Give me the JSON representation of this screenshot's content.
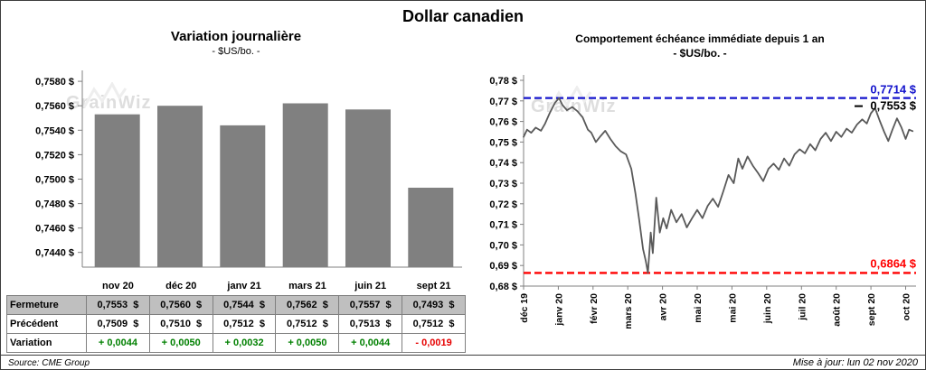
{
  "page_title": "Dollar canadien",
  "watermark": "GrainWiz",
  "footer": {
    "source": "Source: CME Group",
    "updated": "Mise à jour: lun 02 nov 2020"
  },
  "table": {
    "rows": [
      {
        "label": "Fermeture",
        "shaded": true,
        "colorize": false,
        "values": [
          "0,7553  $",
          "0,7560  $",
          "0,7544  $",
          "0,7562  $",
          "0,7557  $",
          "0,7493  $"
        ]
      },
      {
        "label": "Précédent",
        "shaded": false,
        "colorize": false,
        "values": [
          "0,7509  $",
          "0,7510  $",
          "0,7512  $",
          "0,7512  $",
          "0,7513  $",
          "0,7512  $"
        ]
      },
      {
        "label": "Variation",
        "shaded": false,
        "colorize": true,
        "values": [
          "+ 0,0044",
          "+ 0,0050",
          "+ 0,0032",
          "+ 0,0050",
          "+ 0,0044",
          "- 0,0019"
        ]
      }
    ],
    "positive_color": "#008000",
    "negative_color": "#e60000"
  },
  "chart_data": [
    {
      "type": "bar",
      "title": "Variation journalière",
      "subtitle": "- $US/bo. -",
      "categories": [
        "nov 20",
        "déc 20",
        "janv 21",
        "mars 21",
        "juin 21",
        "sept 21"
      ],
      "values": [
        0.7553,
        0.756,
        0.7544,
        0.7562,
        0.7557,
        0.7493
      ],
      "ylim": [
        0.7428,
        0.7586
      ],
      "yticks": [
        0.744,
        0.746,
        0.748,
        0.75,
        0.752,
        0.754,
        0.756,
        0.758
      ],
      "ytick_decimals": 4,
      "bar_color": "#808080",
      "grid": false,
      "legend": "none"
    },
    {
      "type": "line",
      "title": "Comportement échéance immédiate depuis 1 an",
      "subtitle": "- $US/bo. -",
      "x_labels": [
        "déc 19",
        "janv 20",
        "févr 20",
        "mars 20",
        "avr 20",
        "mai 20",
        "mai 20",
        "juin 20",
        "juil 20",
        "août 20",
        "sept 20",
        "oct 20"
      ],
      "ylim": [
        0.68,
        0.78
      ],
      "yticks": [
        0.68,
        0.69,
        0.7,
        0.71,
        0.72,
        0.73,
        0.74,
        0.75,
        0.76,
        0.77,
        0.78
      ],
      "ytick_decimals": 2,
      "line_color": "#595959",
      "grid": false,
      "legend": "none",
      "annotations": {
        "high": {
          "value": 0.7714,
          "label": "0,7714 $",
          "color": "#1414cc"
        },
        "last": {
          "value": 0.7553,
          "label": "0,7553 $",
          "color": "#000000"
        },
        "low": {
          "value": 0.6864,
          "label": "0,6864 $",
          "color": "#ff0000"
        }
      },
      "points": [
        [
          0,
          0.7525
        ],
        [
          0.1,
          0.756
        ],
        [
          0.22,
          0.7545
        ],
        [
          0.35,
          0.757
        ],
        [
          0.5,
          0.7555
        ],
        [
          0.62,
          0.759
        ],
        [
          0.75,
          0.764
        ],
        [
          0.9,
          0.769
        ],
        [
          1.02,
          0.7714
        ],
        [
          1.12,
          0.768
        ],
        [
          1.25,
          0.7655
        ],
        [
          1.4,
          0.767
        ],
        [
          1.55,
          0.765
        ],
        [
          1.7,
          0.762
        ],
        [
          1.85,
          0.756
        ],
        [
          1.95,
          0.7545
        ],
        [
          2.08,
          0.75
        ],
        [
          2.22,
          0.753
        ],
        [
          2.35,
          0.7555
        ],
        [
          2.5,
          0.7515
        ],
        [
          2.65,
          0.748
        ],
        [
          2.8,
          0.7455
        ],
        [
          2.95,
          0.744
        ],
        [
          3.1,
          0.737
        ],
        [
          3.22,
          0.725
        ],
        [
          3.33,
          0.712
        ],
        [
          3.44,
          0.698
        ],
        [
          3.52,
          0.692
        ],
        [
          3.58,
          0.6864
        ],
        [
          3.66,
          0.706
        ],
        [
          3.72,
          0.696
        ],
        [
          3.82,
          0.723
        ],
        [
          3.92,
          0.706
        ],
        [
          4.02,
          0.713
        ],
        [
          4.12,
          0.708
        ],
        [
          4.25,
          0.717
        ],
        [
          4.4,
          0.711
        ],
        [
          4.55,
          0.715
        ],
        [
          4.7,
          0.7085
        ],
        [
          4.85,
          0.713
        ],
        [
          5,
          0.717
        ],
        [
          5.15,
          0.713
        ],
        [
          5.3,
          0.719
        ],
        [
          5.45,
          0.7225
        ],
        [
          5.6,
          0.7185
        ],
        [
          5.75,
          0.726
        ],
        [
          5.9,
          0.734
        ],
        [
          6.05,
          0.73
        ],
        [
          6.18,
          0.742
        ],
        [
          6.3,
          0.737
        ],
        [
          6.45,
          0.743
        ],
        [
          6.6,
          0.7385
        ],
        [
          6.75,
          0.735
        ],
        [
          6.9,
          0.731
        ],
        [
          7.05,
          0.737
        ],
        [
          7.2,
          0.7395
        ],
        [
          7.35,
          0.7365
        ],
        [
          7.5,
          0.742
        ],
        [
          7.65,
          0.7385
        ],
        [
          7.8,
          0.744
        ],
        [
          7.95,
          0.7465
        ],
        [
          8.1,
          0.7445
        ],
        [
          8.25,
          0.749
        ],
        [
          8.4,
          0.746
        ],
        [
          8.55,
          0.7515
        ],
        [
          8.7,
          0.7545
        ],
        [
          8.85,
          0.7505
        ],
        [
          9,
          0.755
        ],
        [
          9.15,
          0.7525
        ],
        [
          9.3,
          0.7565
        ],
        [
          9.45,
          0.7545
        ],
        [
          9.6,
          0.7585
        ],
        [
          9.75,
          0.761
        ],
        [
          9.88,
          0.759
        ],
        [
          10,
          0.764
        ],
        [
          10.12,
          0.7665
        ],
        [
          10.25,
          0.7605
        ],
        [
          10.38,
          0.755
        ],
        [
          10.5,
          0.7505
        ],
        [
          10.62,
          0.756
        ],
        [
          10.75,
          0.7615
        ],
        [
          10.88,
          0.757
        ],
        [
          11,
          0.7515
        ],
        [
          11.1,
          0.756
        ],
        [
          11.2,
          0.7553
        ]
      ]
    }
  ]
}
